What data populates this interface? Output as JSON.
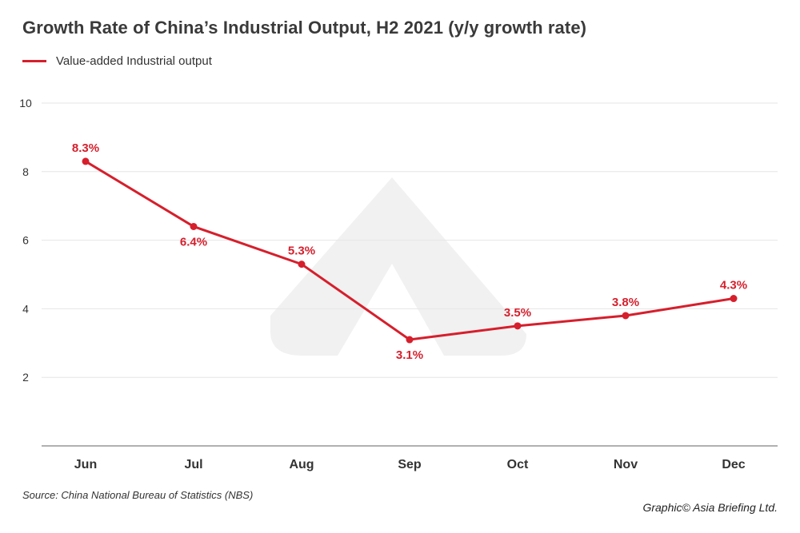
{
  "title": "Growth Rate of China’s Industrial Output, H2 2021 (y/y growth rate)",
  "legend": {
    "label": "Value-added Industrial output"
  },
  "footer": {
    "source": "Source: China National Bureau of Statistics (NBS)",
    "credit": "Graphic© Asia Briefing Ltd."
  },
  "colors": {
    "series": "#d61f2c",
    "grid": "#e6e6e6",
    "axis": "#b0b0b0",
    "watermark": "#f1f1f1"
  },
  "chart_data": {
    "type": "line",
    "title": "Growth Rate of China’s Industrial Output, H2 2021 (y/y growth rate)",
    "categories": [
      "Jun",
      "Jul",
      "Aug",
      "Sep",
      "Oct",
      "Nov",
      "Dec"
    ],
    "series": [
      {
        "name": "Value-added Industrial output",
        "values": [
          8.3,
          6.4,
          5.3,
          3.1,
          3.5,
          3.8,
          4.3
        ],
        "labels": [
          "8.3%",
          "6.4%",
          "5.3%",
          "3.1%",
          "3.5%",
          "3.8%",
          "4.3%"
        ],
        "label_positions": [
          "above",
          "below",
          "above",
          "below",
          "above",
          "above",
          "above"
        ]
      }
    ],
    "yticks": [
      2,
      4,
      6,
      8,
      10
    ],
    "ylim": [
      0,
      10
    ],
    "grid": true,
    "legend_position": "top-left"
  }
}
